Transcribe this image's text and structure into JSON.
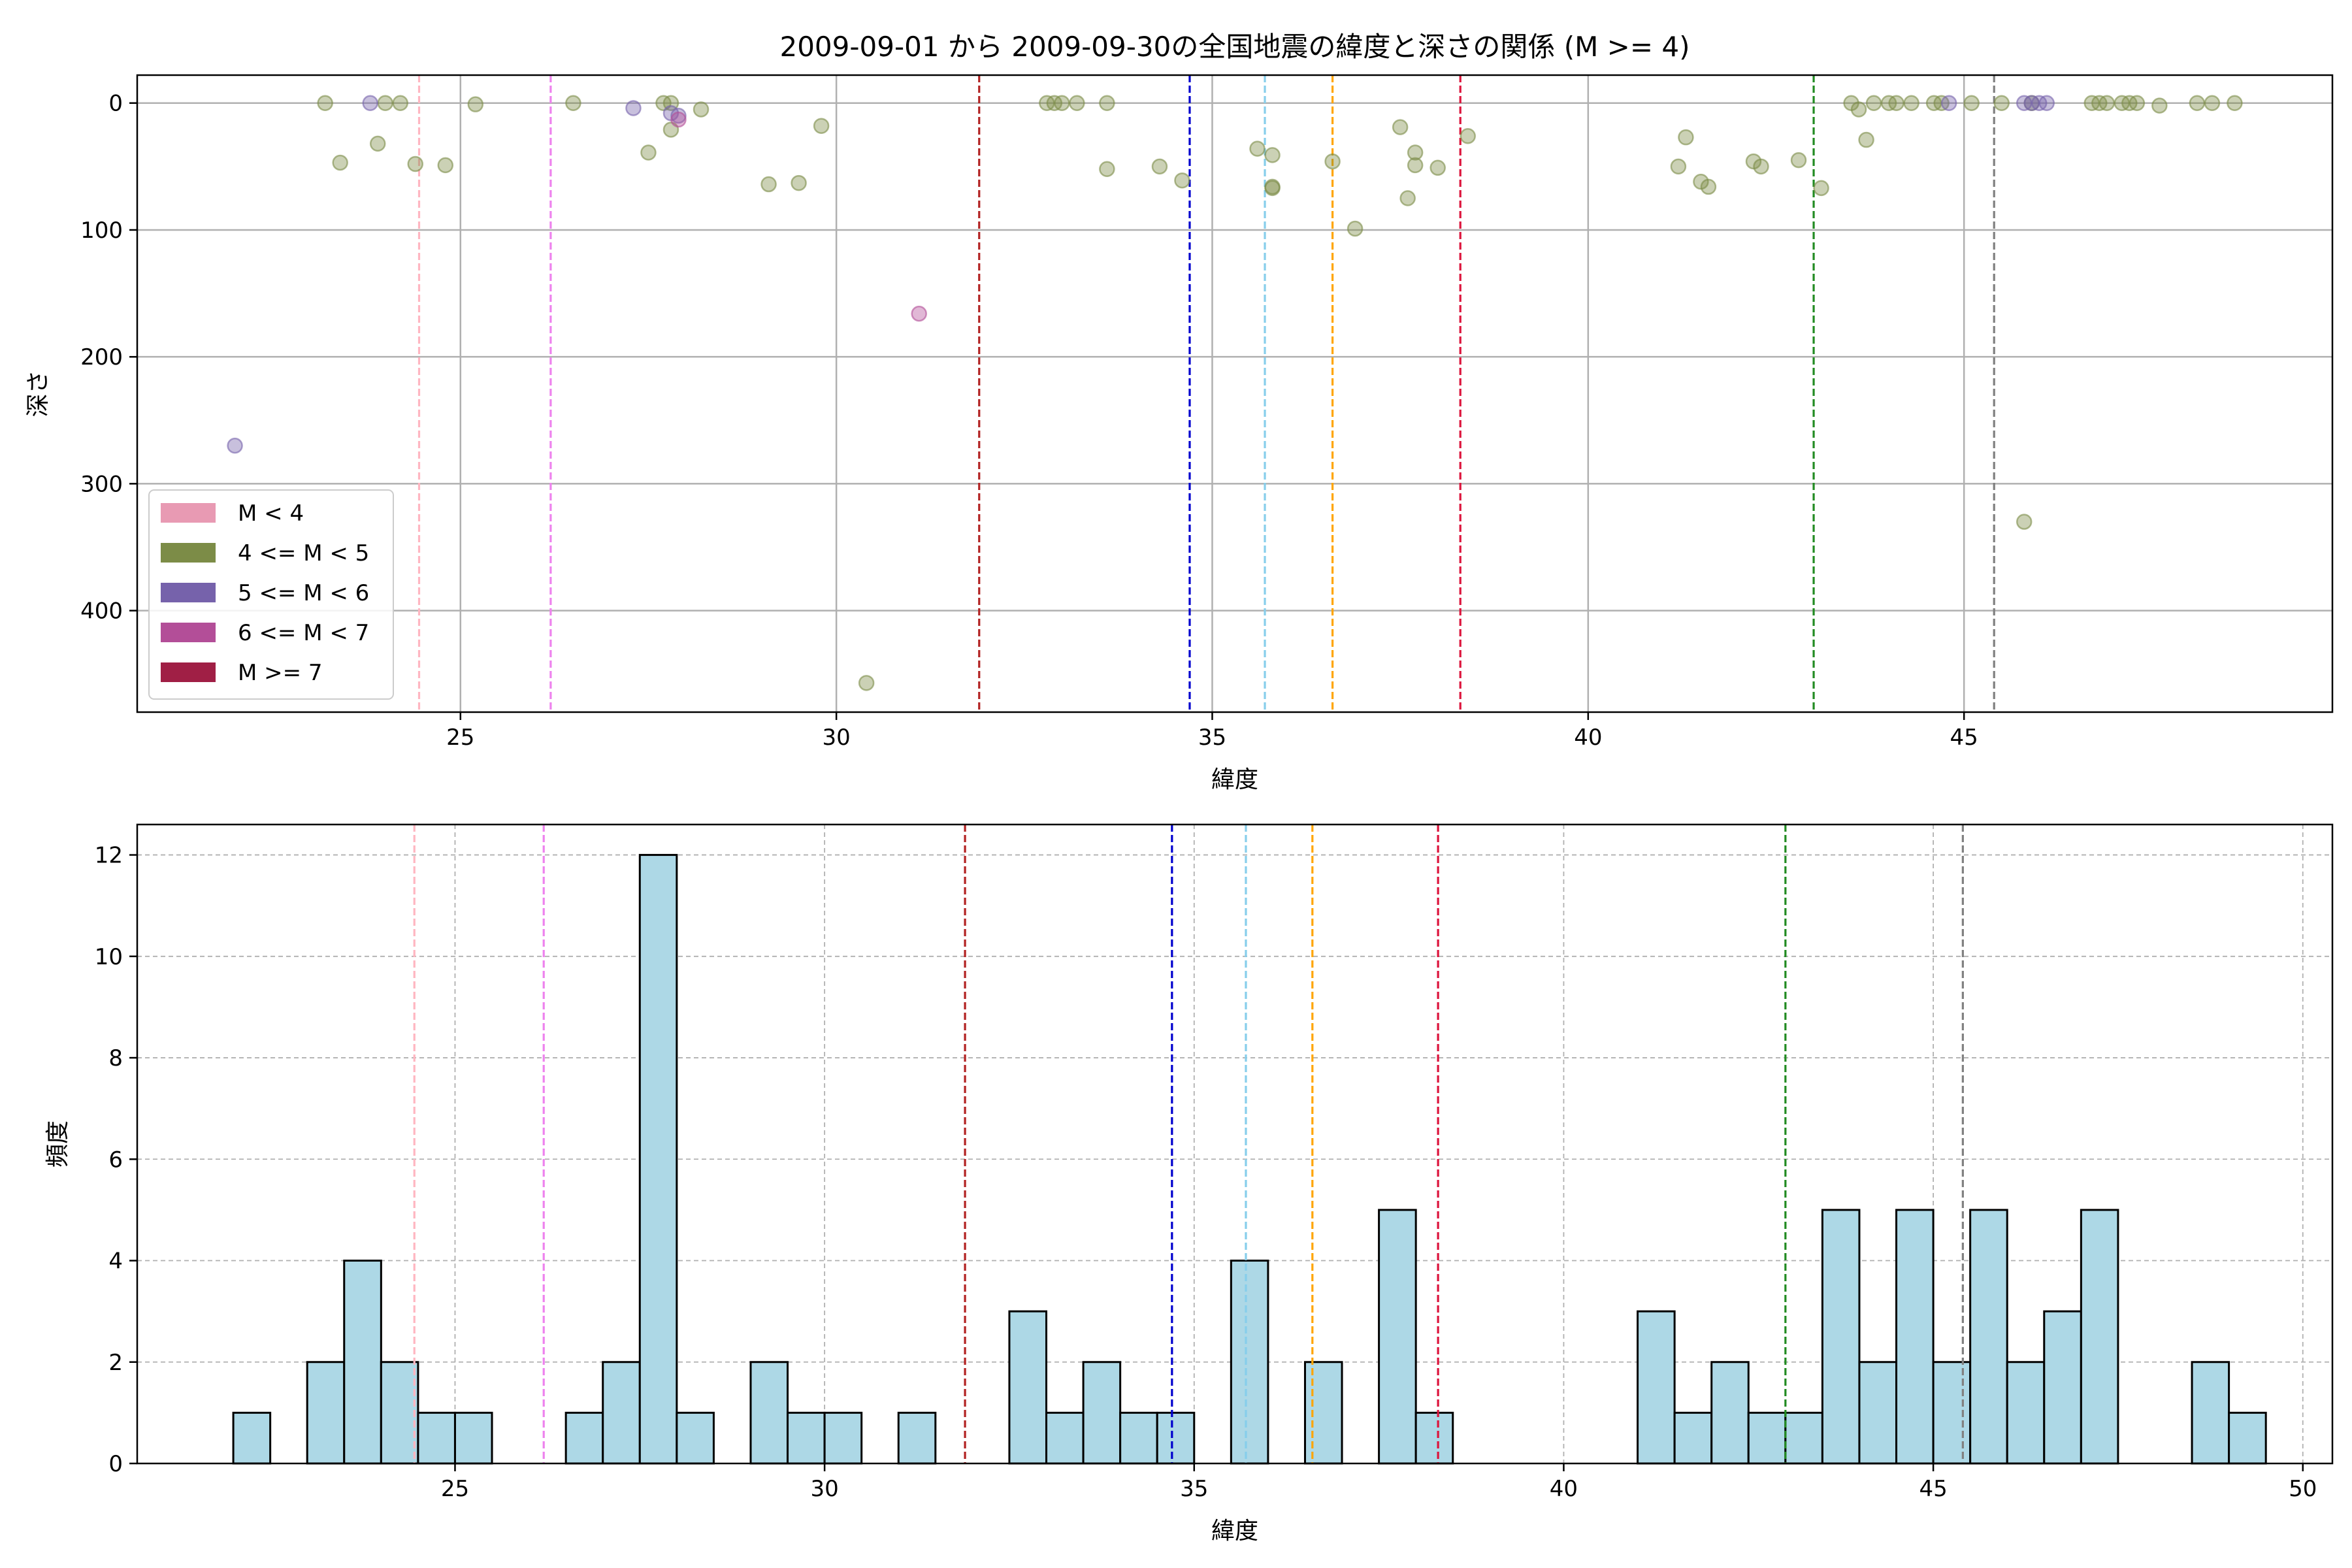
{
  "chart_data": [
    {
      "type": "scatter",
      "title": "2009-09-01 から 2009-09-30の全国地震の緯度と深さの関係 (M >= 4)",
      "xlabel": "緯度",
      "ylabel": "深さ",
      "xlim": [
        20.7,
        49.9
      ],
      "ylim": [
        480,
        -22
      ],
      "y_inverted": true,
      "xticks": [
        25,
        30,
        35,
        40,
        45
      ],
      "yticks": [
        0,
        100,
        200,
        300,
        400
      ],
      "grid": true,
      "legend_position": "lower-left",
      "legend": [
        {
          "label": "M < 4",
          "color": "#e89ab3"
        },
        {
          "label": "4 <= M < 5",
          "color": "#7c8c47"
        },
        {
          "label": "5 <= M < 6",
          "color": "#7662ab"
        },
        {
          "label": "6 <= M < 7",
          "color": "#b34e98"
        },
        {
          "label": "M >= 7",
          "color": "#a01f45"
        }
      ],
      "vlines": [
        {
          "x": 24.45,
          "color": "#ffb6c1"
        },
        {
          "x": 26.2,
          "color": "#ee82ee"
        },
        {
          "x": 31.9,
          "color": "#b22222"
        },
        {
          "x": 34.7,
          "color": "#0000cd"
        },
        {
          "x": 35.7,
          "color": "#87ceeb"
        },
        {
          "x": 36.6,
          "color": "#ffa500"
        },
        {
          "x": 38.3,
          "color": "#dc143c"
        },
        {
          "x": 43.0,
          "color": "#228b22"
        },
        {
          "x": 45.4,
          "color": "#808080"
        }
      ],
      "series": [
        {
          "magnitude_class": "4 <= M < 5",
          "color": "#7c8c47",
          "points": [
            [
              23.2,
              0
            ],
            [
              23.4,
              47
            ],
            [
              23.9,
              32
            ],
            [
              24.0,
              0
            ],
            [
              24.2,
              0
            ],
            [
              24.4,
              48
            ],
            [
              24.8,
              49
            ],
            [
              25.2,
              1
            ],
            [
              26.5,
              0
            ],
            [
              27.5,
              39
            ],
            [
              27.7,
              0
            ],
            [
              27.8,
              21
            ],
            [
              27.8,
              0
            ],
            [
              28.2,
              5
            ],
            [
              29.1,
              64
            ],
            [
              29.5,
              63
            ],
            [
              29.8,
              18
            ],
            [
              30.4,
              457
            ],
            [
              32.8,
              0
            ],
            [
              32.9,
              0
            ],
            [
              33.0,
              0
            ],
            [
              33.2,
              0
            ],
            [
              33.6,
              0
            ],
            [
              33.6,
              52
            ],
            [
              34.3,
              50
            ],
            [
              34.6,
              61
            ],
            [
              35.6,
              36
            ],
            [
              35.8,
              41
            ],
            [
              35.8,
              66
            ],
            [
              35.8,
              67
            ],
            [
              36.6,
              46
            ],
            [
              36.9,
              99
            ],
            [
              37.5,
              19
            ],
            [
              37.6,
              75
            ],
            [
              37.7,
              49
            ],
            [
              37.7,
              39
            ],
            [
              38.0,
              51
            ],
            [
              38.4,
              26
            ],
            [
              41.2,
              50
            ],
            [
              41.3,
              27
            ],
            [
              41.5,
              62
            ],
            [
              41.6,
              66
            ],
            [
              42.2,
              46
            ],
            [
              42.3,
              50
            ],
            [
              42.8,
              45
            ],
            [
              43.1,
              67
            ],
            [
              43.5,
              0
            ],
            [
              43.6,
              5
            ],
            [
              43.7,
              29
            ],
            [
              43.8,
              0
            ],
            [
              44.0,
              0
            ],
            [
              44.1,
              0
            ],
            [
              44.3,
              0
            ],
            [
              44.6,
              0
            ],
            [
              44.7,
              0
            ],
            [
              45.1,
              0
            ],
            [
              45.5,
              0
            ],
            [
              45.8,
              330
            ],
            [
              45.9,
              0
            ],
            [
              46.7,
              0
            ],
            [
              46.8,
              0
            ],
            [
              46.9,
              0
            ],
            [
              47.1,
              0
            ],
            [
              47.2,
              0
            ],
            [
              47.3,
              0
            ],
            [
              47.6,
              2
            ],
            [
              48.1,
              0
            ],
            [
              48.3,
              0
            ],
            [
              48.6,
              0
            ]
          ]
        },
        {
          "magnitude_class": "5 <= M < 6",
          "color": "#7662ab",
          "points": [
            [
              22.0,
              270
            ],
            [
              23.8,
              0
            ],
            [
              27.3,
              4
            ],
            [
              27.8,
              8
            ],
            [
              27.9,
              10
            ],
            [
              44.8,
              0
            ],
            [
              45.8,
              0
            ],
            [
              45.9,
              0
            ],
            [
              46.0,
              0
            ],
            [
              46.1,
              0
            ]
          ]
        },
        {
          "magnitude_class": "6 <= M < 7",
          "color": "#b34e98",
          "points": [
            [
              27.9,
              13
            ],
            [
              31.1,
              166
            ]
          ]
        }
      ]
    },
    {
      "type": "bar",
      "subtype": "histogram",
      "xlabel": "緯度",
      "ylabel": "頻度",
      "xlim": [
        20.7,
        50.4
      ],
      "ylim": [
        0,
        12.6
      ],
      "xticks": [
        25,
        30,
        35,
        40,
        45,
        50
      ],
      "yticks": [
        0,
        2,
        4,
        6,
        8,
        10,
        12
      ],
      "grid": true,
      "bar_color": "#add8e6",
      "bin_start": 22,
      "bin_width": 0.5,
      "values": [
        1,
        0,
        2,
        4,
        2,
        1,
        1,
        0,
        0,
        1,
        2,
        12,
        1,
        0,
        2,
        1,
        1,
        0,
        1,
        0,
        0,
        3,
        1,
        2,
        1,
        1,
        0,
        4,
        0,
        2,
        0,
        5,
        1,
        0,
        0,
        0,
        0,
        0,
        3,
        1,
        2,
        1,
        1,
        5,
        2,
        5,
        2,
        5,
        2,
        3,
        5,
        0,
        0,
        2,
        1
      ],
      "vlines": [
        {
          "x": 24.45,
          "color": "#ffb6c1"
        },
        {
          "x": 26.2,
          "color": "#ee82ee"
        },
        {
          "x": 31.9,
          "color": "#b22222"
        },
        {
          "x": 34.7,
          "color": "#0000cd"
        },
        {
          "x": 35.7,
          "color": "#87ceeb"
        },
        {
          "x": 36.6,
          "color": "#ffa500"
        },
        {
          "x": 38.3,
          "color": "#dc143c"
        },
        {
          "x": 43.0,
          "color": "#228b22"
        },
        {
          "x": 45.4,
          "color": "#808080"
        }
      ]
    }
  ]
}
